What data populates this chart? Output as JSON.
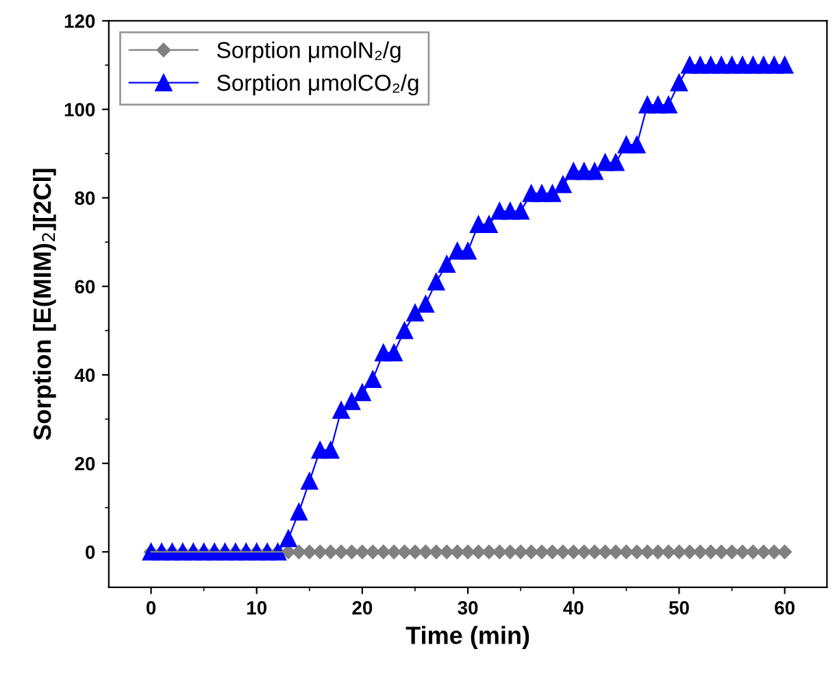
{
  "chart_data": {
    "type": "line",
    "xlabel": "Time (min)",
    "ylabel": "Sorption [E(MIM)$_{2}$][2Cl]",
    "x": [
      0,
      1,
      2,
      3,
      4,
      5,
      6,
      7,
      8,
      9,
      10,
      11,
      12,
      13,
      14,
      15,
      16,
      17,
      18,
      19,
      20,
      21,
      22,
      23,
      24,
      25,
      26,
      27,
      28,
      29,
      30,
      31,
      32,
      33,
      34,
      35,
      36,
      37,
      38,
      39,
      40,
      41,
      42,
      43,
      44,
      45,
      46,
      47,
      48,
      49,
      50,
      51,
      52,
      53,
      54,
      55,
      56,
      57,
      58,
      59,
      60
    ],
    "series": [
      {
        "name": "Sorption μmolN₂/g",
        "color": "#808080",
        "marker": "diamond",
        "values": [
          0,
          0,
          0,
          0,
          0,
          0,
          0,
          0,
          0,
          0,
          0,
          0,
          0,
          0,
          0,
          0,
          0,
          0,
          0,
          0,
          0,
          0,
          0,
          0,
          0,
          0,
          0,
          0,
          0,
          0,
          0,
          0,
          0,
          0,
          0,
          0,
          0,
          0,
          0,
          0,
          0,
          0,
          0,
          0,
          0,
          0,
          0,
          0,
          0,
          0,
          0,
          0,
          0,
          0,
          0,
          0,
          0,
          0,
          0,
          0,
          0
        ]
      },
      {
        "name": "Sorption μmolCO₂/g",
        "color": "#0000ff",
        "marker": "triangle",
        "values": [
          0,
          0,
          0,
          0,
          0,
          0,
          0,
          0,
          0,
          0,
          0,
          0,
          0,
          3,
          9,
          16,
          23,
          23,
          32,
          34,
          36,
          39,
          45,
          45,
          50,
          54,
          56,
          61,
          65,
          68,
          68,
          74,
          74,
          77,
          77,
          77,
          81,
          81,
          81,
          83,
          86,
          86,
          86,
          88,
          88,
          92,
          92,
          101,
          101,
          101,
          106,
          110,
          110,
          110,
          110,
          110,
          110,
          110,
          110,
          110,
          110
        ]
      }
    ],
    "xlim": [
      -4,
      64
    ],
    "ylim": [
      -8,
      120
    ],
    "xticks": [
      0,
      10,
      20,
      30,
      40,
      50,
      60
    ],
    "yticks": [
      0,
      20,
      40,
      60,
      80,
      100,
      120
    ],
    "grid": false,
    "legend": "top left",
    "line_style": "solid"
  }
}
